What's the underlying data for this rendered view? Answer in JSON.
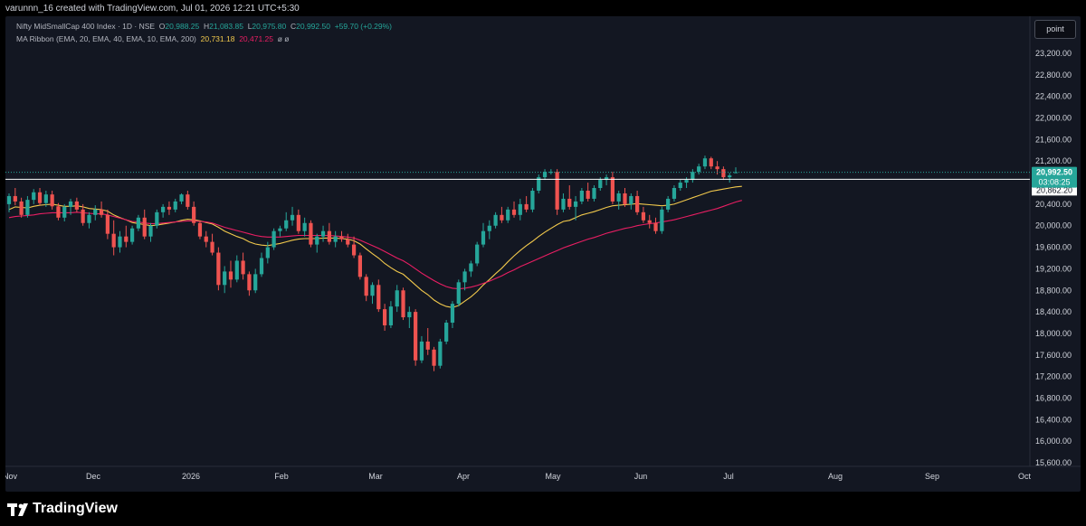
{
  "header": {
    "caption": "varunnn_16 created with TradingView.com, Jul 01, 2026 12:21 UTC+5:30"
  },
  "legend": {
    "symbol": "Nifty MidSmallCap 400 Index · 1D · NSE",
    "open_label": "O",
    "open": "20,988.25",
    "high_label": "H",
    "high": "21,083.85",
    "low_label": "L",
    "low": "20,975.80",
    "close_label": "C",
    "close": "20,992.50",
    "change": "+59.70 (+0.29%)",
    "ma_label": "MA Ribbon (EMA, 20, EMA, 40, EMA, 10, EMA, 200)",
    "ma_value_1": "20,731.18",
    "ma_value_2": "20,471.25",
    "ma_tail": "ø ø"
  },
  "toolbar": {
    "point_label": "point"
  },
  "footer": {
    "brand": "TradingView"
  },
  "colors": {
    "up": "#26a69a",
    "down": "#ef5350",
    "ema_fast": "#f2c94c",
    "ema_slow": "#e91e63",
    "background": "#131722",
    "price_line": "#ffffff"
  },
  "chart_data": {
    "type": "candlestick",
    "y_ticks": [
      "23,200.00",
      "22,800.00",
      "22,400.00",
      "22,000.00",
      "21,600.00",
      "21,200.00",
      "20,400.00",
      "20,000.00",
      "19,600.00",
      "19,200.00",
      "18,800.00",
      "18,400.00",
      "18,000.00",
      "17,600.00",
      "17,200.00",
      "16,800.00",
      "16,400.00",
      "16,000.00",
      "15,600.00"
    ],
    "y_range": [
      15400,
      23400
    ],
    "x_labels": [
      "Nov",
      "Dec",
      "2026",
      "Feb",
      "Mar",
      "Apr",
      "May",
      "Jun",
      "Jul",
      "Aug",
      "Sep",
      "Oct"
    ],
    "last_price": "20,992.50",
    "countdown": "03:08:25",
    "horizontal_line": "20,862.20",
    "candles": [
      {
        "o": 20400,
        "h": 20600,
        "l": 20250,
        "c": 20550
      },
      {
        "o": 20550,
        "h": 20700,
        "l": 20380,
        "c": 20450
      },
      {
        "o": 20450,
        "h": 20520,
        "l": 20150,
        "c": 20200
      },
      {
        "o": 20200,
        "h": 20550,
        "l": 20150,
        "c": 20480
      },
      {
        "o": 20480,
        "h": 20680,
        "l": 20400,
        "c": 20620
      },
      {
        "o": 20620,
        "h": 20700,
        "l": 20380,
        "c": 20420
      },
      {
        "o": 20420,
        "h": 20650,
        "l": 20350,
        "c": 20580
      },
      {
        "o": 20580,
        "h": 20650,
        "l": 20300,
        "c": 20360
      },
      {
        "o": 20360,
        "h": 20420,
        "l": 20100,
        "c": 20150
      },
      {
        "o": 20150,
        "h": 20400,
        "l": 20080,
        "c": 20350
      },
      {
        "o": 20350,
        "h": 20500,
        "l": 20200,
        "c": 20450
      },
      {
        "o": 20450,
        "h": 20520,
        "l": 20250,
        "c": 20300
      },
      {
        "o": 20300,
        "h": 20400,
        "l": 20000,
        "c": 20050
      },
      {
        "o": 20050,
        "h": 20250,
        "l": 19950,
        "c": 20200
      },
      {
        "o": 20200,
        "h": 20380,
        "l": 20100,
        "c": 20300
      },
      {
        "o": 20300,
        "h": 20450,
        "l": 20150,
        "c": 20200
      },
      {
        "o": 20200,
        "h": 20300,
        "l": 19750,
        "c": 19850
      },
      {
        "o": 19850,
        "h": 20100,
        "l": 19450,
        "c": 19600
      },
      {
        "o": 19600,
        "h": 19900,
        "l": 19500,
        "c": 19800
      },
      {
        "o": 19800,
        "h": 20000,
        "l": 19600,
        "c": 19700
      },
      {
        "o": 19700,
        "h": 20000,
        "l": 19650,
        "c": 19950
      },
      {
        "o": 19950,
        "h": 20200,
        "l": 19900,
        "c": 20150
      },
      {
        "o": 20150,
        "h": 20300,
        "l": 19750,
        "c": 19800
      },
      {
        "o": 19800,
        "h": 20050,
        "l": 19700,
        "c": 20000
      },
      {
        "o": 20000,
        "h": 20300,
        "l": 19950,
        "c": 20250
      },
      {
        "o": 20250,
        "h": 20400,
        "l": 20150,
        "c": 20350
      },
      {
        "o": 20350,
        "h": 20450,
        "l": 20200,
        "c": 20300
      },
      {
        "o": 20300,
        "h": 20500,
        "l": 20250,
        "c": 20450
      },
      {
        "o": 20450,
        "h": 20600,
        "l": 20400,
        "c": 20580
      },
      {
        "o": 20580,
        "h": 20650,
        "l": 20300,
        "c": 20350
      },
      {
        "o": 20350,
        "h": 20450,
        "l": 20000,
        "c": 20050
      },
      {
        "o": 20050,
        "h": 20100,
        "l": 19750,
        "c": 19800
      },
      {
        "o": 19800,
        "h": 19900,
        "l": 19600,
        "c": 19700
      },
      {
        "o": 19700,
        "h": 19850,
        "l": 19450,
        "c": 19500
      },
      {
        "o": 19500,
        "h": 19600,
        "l": 18800,
        "c": 18900
      },
      {
        "o": 18900,
        "h": 19250,
        "l": 18750,
        "c": 19150
      },
      {
        "o": 19150,
        "h": 19350,
        "l": 18850,
        "c": 19000
      },
      {
        "o": 19000,
        "h": 19450,
        "l": 18950,
        "c": 19350
      },
      {
        "o": 19350,
        "h": 19500,
        "l": 19000,
        "c": 19100
      },
      {
        "o": 19100,
        "h": 19150,
        "l": 18700,
        "c": 18800
      },
      {
        "o": 18800,
        "h": 19200,
        "l": 18750,
        "c": 19100
      },
      {
        "o": 19100,
        "h": 19500,
        "l": 19050,
        "c": 19400
      },
      {
        "o": 19400,
        "h": 19700,
        "l": 19300,
        "c": 19600
      },
      {
        "o": 19600,
        "h": 19950,
        "l": 19550,
        "c": 19900
      },
      {
        "o": 19900,
        "h": 20000,
        "l": 19800,
        "c": 19950
      },
      {
        "o": 19950,
        "h": 20250,
        "l": 19900,
        "c": 20100
      },
      {
        "o": 20100,
        "h": 20350,
        "l": 20000,
        "c": 20200
      },
      {
        "o": 20200,
        "h": 20300,
        "l": 19850,
        "c": 19900
      },
      {
        "o": 19900,
        "h": 20150,
        "l": 19800,
        "c": 20050
      },
      {
        "o": 20050,
        "h": 20100,
        "l": 19600,
        "c": 19650
      },
      {
        "o": 19650,
        "h": 19850,
        "l": 19500,
        "c": 19800
      },
      {
        "o": 19800,
        "h": 20000,
        "l": 19700,
        "c": 19900
      },
      {
        "o": 19900,
        "h": 20050,
        "l": 19650,
        "c": 19700
      },
      {
        "o": 19700,
        "h": 19900,
        "l": 19600,
        "c": 19800
      },
      {
        "o": 19800,
        "h": 19900,
        "l": 19700,
        "c": 19750
      },
      {
        "o": 19750,
        "h": 19850,
        "l": 19600,
        "c": 19650
      },
      {
        "o": 19650,
        "h": 19800,
        "l": 19400,
        "c": 19450
      },
      {
        "o": 19450,
        "h": 19500,
        "l": 19000,
        "c": 19050
      },
      {
        "o": 19050,
        "h": 19100,
        "l": 18600,
        "c": 18700
      },
      {
        "o": 18700,
        "h": 18950,
        "l": 18550,
        "c": 18900
      },
      {
        "o": 18900,
        "h": 19000,
        "l": 18400,
        "c": 18450
      },
      {
        "o": 18450,
        "h": 18550,
        "l": 18050,
        "c": 18150
      },
      {
        "o": 18150,
        "h": 18600,
        "l": 18100,
        "c": 18500
      },
      {
        "o": 18500,
        "h": 18900,
        "l": 18400,
        "c": 18800
      },
      {
        "o": 18800,
        "h": 18850,
        "l": 18250,
        "c": 18300
      },
      {
        "o": 18300,
        "h": 18500,
        "l": 18100,
        "c": 18400
      },
      {
        "o": 18400,
        "h": 18450,
        "l": 17400,
        "c": 17500
      },
      {
        "o": 17500,
        "h": 17950,
        "l": 17450,
        "c": 17850
      },
      {
        "o": 17850,
        "h": 18100,
        "l": 17600,
        "c": 17700
      },
      {
        "o": 17700,
        "h": 17750,
        "l": 17300,
        "c": 17400
      },
      {
        "o": 17400,
        "h": 17900,
        "l": 17350,
        "c": 17850
      },
      {
        "o": 17850,
        "h": 18250,
        "l": 17800,
        "c": 18200
      },
      {
        "o": 18200,
        "h": 18600,
        "l": 18100,
        "c": 18550
      },
      {
        "o": 18550,
        "h": 19000,
        "l": 18500,
        "c": 18950
      },
      {
        "o": 18950,
        "h": 19200,
        "l": 18800,
        "c": 19150
      },
      {
        "o": 19150,
        "h": 19350,
        "l": 19050,
        "c": 19300
      },
      {
        "o": 19300,
        "h": 19700,
        "l": 19250,
        "c": 19650
      },
      {
        "o": 19650,
        "h": 20050,
        "l": 19600,
        "c": 19900
      },
      {
        "o": 19900,
        "h": 20100,
        "l": 19750,
        "c": 20000
      },
      {
        "o": 20000,
        "h": 20250,
        "l": 19950,
        "c": 20200
      },
      {
        "o": 20200,
        "h": 20350,
        "l": 20050,
        "c": 20100
      },
      {
        "o": 20100,
        "h": 20350,
        "l": 20050,
        "c": 20300
      },
      {
        "o": 20300,
        "h": 20450,
        "l": 20150,
        "c": 20200
      },
      {
        "o": 20200,
        "h": 20500,
        "l": 20100,
        "c": 20400
      },
      {
        "o": 20400,
        "h": 20550,
        "l": 20250,
        "c": 20300
      },
      {
        "o": 20300,
        "h": 20700,
        "l": 20250,
        "c": 20650
      },
      {
        "o": 20650,
        "h": 20950,
        "l": 20600,
        "c": 20900
      },
      {
        "o": 20900,
        "h": 21050,
        "l": 20850,
        "c": 21000
      },
      {
        "o": 21000,
        "h": 21050,
        "l": 20950,
        "c": 21000
      },
      {
        "o": 21000,
        "h": 21050,
        "l": 20200,
        "c": 20300
      },
      {
        "o": 20300,
        "h": 20600,
        "l": 20250,
        "c": 20500
      },
      {
        "o": 20500,
        "h": 20750,
        "l": 20300,
        "c": 20350
      },
      {
        "o": 20350,
        "h": 20550,
        "l": 20100,
        "c": 20450
      },
      {
        "o": 20450,
        "h": 20700,
        "l": 20400,
        "c": 20650
      },
      {
        "o": 20650,
        "h": 20800,
        "l": 20450,
        "c": 20500
      },
      {
        "o": 20500,
        "h": 20750,
        "l": 20450,
        "c": 20700
      },
      {
        "o": 20700,
        "h": 20900,
        "l": 20650,
        "c": 20850
      },
      {
        "o": 20850,
        "h": 20950,
        "l": 20750,
        "c": 20900
      },
      {
        "o": 20900,
        "h": 21000,
        "l": 20400,
        "c": 20450
      },
      {
        "o": 20450,
        "h": 20650,
        "l": 20300,
        "c": 20600
      },
      {
        "o": 20600,
        "h": 20700,
        "l": 20350,
        "c": 20400
      },
      {
        "o": 20400,
        "h": 20600,
        "l": 20300,
        "c": 20550
      },
      {
        "o": 20550,
        "h": 20650,
        "l": 20200,
        "c": 20250
      },
      {
        "o": 20250,
        "h": 20350,
        "l": 20050,
        "c": 20100
      },
      {
        "o": 20100,
        "h": 20200,
        "l": 19950,
        "c": 20050
      },
      {
        "o": 20050,
        "h": 20150,
        "l": 19850,
        "c": 19900
      },
      {
        "o": 19900,
        "h": 20350,
        "l": 19850,
        "c": 20300
      },
      {
        "o": 20300,
        "h": 20550,
        "l": 20250,
        "c": 20500
      },
      {
        "o": 20500,
        "h": 20750,
        "l": 20450,
        "c": 20700
      },
      {
        "o": 20700,
        "h": 20850,
        "l": 20650,
        "c": 20800
      },
      {
        "o": 20800,
        "h": 20900,
        "l": 20700,
        "c": 20850
      },
      {
        "o": 20850,
        "h": 21050,
        "l": 20800,
        "c": 21000
      },
      {
        "o": 21000,
        "h": 21150,
        "l": 20950,
        "c": 21100
      },
      {
        "o": 21100,
        "h": 21300,
        "l": 21050,
        "c": 21250
      },
      {
        "o": 21250,
        "h": 21280,
        "l": 21050,
        "c": 21100
      },
      {
        "o": 21100,
        "h": 21200,
        "l": 20950,
        "c": 21050
      },
      {
        "o": 21050,
        "h": 21100,
        "l": 20850,
        "c": 20900
      },
      {
        "o": 20900,
        "h": 20980,
        "l": 20800,
        "c": 20933
      },
      {
        "o": 20988.25,
        "h": 21083.85,
        "l": 20975.8,
        "c": 20992.5
      }
    ],
    "series": [
      {
        "type": "ema",
        "values": [
          20300,
          20350,
          20340,
          20330,
          20360,
          20380,
          20390,
          20400,
          20380,
          20360,
          20360,
          20370,
          20350,
          20320,
          20310,
          20300,
          20270,
          20200,
          20150,
          20110,
          20060,
          20040,
          20020,
          20000,
          20010,
          20030,
          20050,
          20070,
          20100,
          20120,
          20110,
          20090,
          20060,
          20030,
          19970,
          19900,
          19850,
          19800,
          19760,
          19700,
          19660,
          19640,
          19630,
          19650,
          19670,
          19700,
          19730,
          19750,
          19760,
          19760,
          19760,
          19770,
          19770,
          19770,
          19760,
          19750,
          19720,
          19660,
          19570,
          19480,
          19400,
          19300,
          19220,
          19150,
          19100,
          19000,
          18900,
          18800,
          18720,
          18620,
          18550,
          18500,
          18480,
          18520,
          18600,
          18680,
          18780,
          18900,
          19000,
          19110,
          19210,
          19330,
          19440,
          19540,
          19630,
          19710,
          19800,
          19880,
          19950,
          20020,
          20080,
          20100,
          20150,
          20200,
          20230,
          20260,
          20300,
          20340,
          20370,
          20380,
          20390,
          20400,
          20410,
          20400,
          20390,
          20380,
          20370,
          20380,
          20400,
          20440,
          20480,
          20520,
          20560,
          20600,
          20640,
          20660,
          20680,
          20700,
          20720,
          20731
        ]
      },
      {
        "type": "ema",
        "values": [
          20150,
          20170,
          20180,
          20190,
          20200,
          20220,
          20230,
          20240,
          20240,
          20240,
          20240,
          20250,
          20240,
          20230,
          20220,
          20220,
          20200,
          20170,
          20140,
          20110,
          20080,
          20070,
          20050,
          20040,
          20040,
          20050,
          20060,
          20070,
          20080,
          20090,
          20090,
          20080,
          20070,
          20050,
          20010,
          19970,
          19940,
          19910,
          19880,
          19850,
          19820,
          19800,
          19790,
          19790,
          19790,
          19800,
          19810,
          19820,
          19820,
          19820,
          19820,
          19820,
          19820,
          19810,
          19800,
          19790,
          19770,
          19730,
          19680,
          19630,
          19580,
          19520,
          19460,
          19400,
          19350,
          19280,
          19200,
          19120,
          19050,
          18980,
          18920,
          18870,
          18840,
          18830,
          18840,
          18860,
          18890,
          18930,
          18970,
          19020,
          19070,
          19130,
          19180,
          19240,
          19290,
          19340,
          19390,
          19440,
          19490,
          19540,
          19590,
          19630,
          19670,
          19710,
          19750,
          19780,
          19820,
          19860,
          19890,
          19920,
          19950,
          19970,
          20000,
          20020,
          20040,
          20050,
          20070,
          20090,
          20110,
          20140,
          20170,
          20200,
          20230,
          20260,
          20290,
          20320,
          20360,
          20400,
          20440,
          20471
        ]
      }
    ]
  }
}
